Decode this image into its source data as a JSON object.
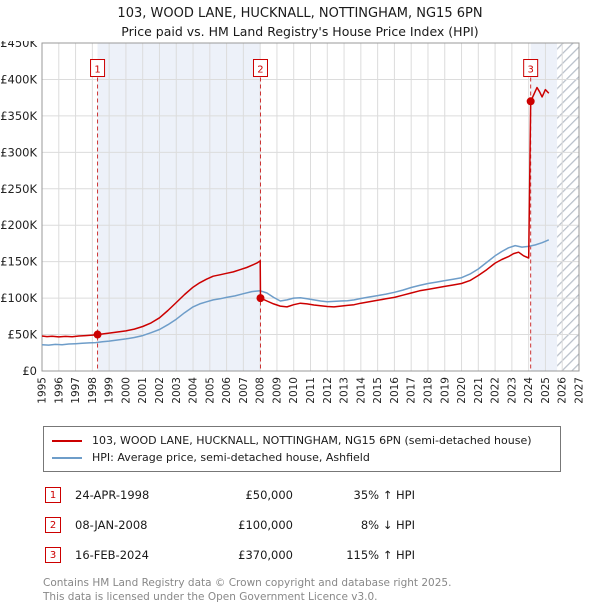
{
  "title": {
    "line1": "103, WOOD LANE, HUCKNALL, NOTTINGHAM, NG15 6PN",
    "line2": "Price paid vs. HM Land Registry's House Price Index (HPI)"
  },
  "chart_data": {
    "type": "line",
    "x_range": [
      1995,
      2027
    ],
    "y_range": [
      0,
      450000
    ],
    "grid": true,
    "x_ticks": [
      1995,
      1996,
      1997,
      1998,
      1999,
      2000,
      2001,
      2002,
      2003,
      2004,
      2005,
      2006,
      2007,
      2008,
      2009,
      2010,
      2011,
      2012,
      2013,
      2014,
      2015,
      2016,
      2017,
      2018,
      2019,
      2020,
      2021,
      2022,
      2023,
      2024,
      2025,
      2026,
      2027
    ],
    "y_ticks": [
      {
        "value": 0,
        "label": "£0"
      },
      {
        "value": 50000,
        "label": "£50K"
      },
      {
        "value": 100000,
        "label": "£100K"
      },
      {
        "value": 150000,
        "label": "£150K"
      },
      {
        "value": 200000,
        "label": "£200K"
      },
      {
        "value": 250000,
        "label": "£250K"
      },
      {
        "value": 300000,
        "label": "£300K"
      },
      {
        "value": 350000,
        "label": "£350K"
      },
      {
        "value": 400000,
        "label": "£400K"
      },
      {
        "value": 450000,
        "label": "£450K"
      }
    ],
    "colors": {
      "band": "#edf1f9",
      "grid": "#dcdcdc",
      "axis": "#999999",
      "sale": "#cc0000",
      "sale_dash": "#cc3333",
      "hatch_line": "#b8bfc9"
    },
    "marker_label_y": 415000,
    "bands": [
      [
        1998.31,
        2008.02
      ],
      [
        2024.12,
        2025.7
      ]
    ],
    "hatch": [
      2025.7,
      2027
    ],
    "series": [
      {
        "name": "103, WOOD LANE, HUCKNALL, NOTTINGHAM, NG15 6PN (semi-detached house)",
        "color": "#cc0000",
        "width": 1.5,
        "points": [
          [
            1995.0,
            48000
          ],
          [
            1995.3,
            47200
          ],
          [
            1995.6,
            47800
          ],
          [
            1996.0,
            46800
          ],
          [
            1996.4,
            47500
          ],
          [
            1996.8,
            47000
          ],
          [
            1997.2,
            48000
          ],
          [
            1997.6,
            48500
          ],
          [
            1998.0,
            49200
          ],
          [
            1998.31,
            50000
          ],
          [
            1998.7,
            51000
          ],
          [
            1999.0,
            52000
          ],
          [
            1999.5,
            53500
          ],
          [
            2000.0,
            55000
          ],
          [
            2000.5,
            57500
          ],
          [
            2001.0,
            61000
          ],
          [
            2001.5,
            66000
          ],
          [
            2002.0,
            73000
          ],
          [
            2002.5,
            83000
          ],
          [
            2003.0,
            94000
          ],
          [
            2003.5,
            105000
          ],
          [
            2004.0,
            115000
          ],
          [
            2004.4,
            121000
          ],
          [
            2004.8,
            126000
          ],
          [
            2005.2,
            130000
          ],
          [
            2005.6,
            132000
          ],
          [
            2006.0,
            134000
          ],
          [
            2006.4,
            136000
          ],
          [
            2006.8,
            139000
          ],
          [
            2007.2,
            142000
          ],
          [
            2007.5,
            145000
          ],
          [
            2007.8,
            148000
          ],
          [
            2008.0,
            151000
          ],
          [
            2008.02,
            100000
          ],
          [
            2008.4,
            96000
          ],
          [
            2008.8,
            92000
          ],
          [
            2009.2,
            89000
          ],
          [
            2009.6,
            88000
          ],
          [
            2010.0,
            91000
          ],
          [
            2010.4,
            93000
          ],
          [
            2010.8,
            92000
          ],
          [
            2011.2,
            90500
          ],
          [
            2011.6,
            89500
          ],
          [
            2012.0,
            88500
          ],
          [
            2012.4,
            88000
          ],
          [
            2012.8,
            89000
          ],
          [
            2013.2,
            90000
          ],
          [
            2013.6,
            91000
          ],
          [
            2014.0,
            93000
          ],
          [
            2014.5,
            95000
          ],
          [
            2015.0,
            97000
          ],
          [
            2015.5,
            99000
          ],
          [
            2016.0,
            101000
          ],
          [
            2016.5,
            104000
          ],
          [
            2017.0,
            107000
          ],
          [
            2017.5,
            110000
          ],
          [
            2018.0,
            112000
          ],
          [
            2018.5,
            114000
          ],
          [
            2019.0,
            116000
          ],
          [
            2019.5,
            118000
          ],
          [
            2020.0,
            120000
          ],
          [
            2020.5,
            124000
          ],
          [
            2021.0,
            131000
          ],
          [
            2021.5,
            139000
          ],
          [
            2022.0,
            148000
          ],
          [
            2022.4,
            153000
          ],
          [
            2022.8,
            157000
          ],
          [
            2023.1,
            161000
          ],
          [
            2023.4,
            163000
          ],
          [
            2023.7,
            158000
          ],
          [
            2024.0,
            155000
          ],
          [
            2024.12,
            370000
          ],
          [
            2024.3,
            379000
          ],
          [
            2024.5,
            389000
          ],
          [
            2024.65,
            383000
          ],
          [
            2024.8,
            376000
          ],
          [
            2025.0,
            386000
          ],
          [
            2025.2,
            381000
          ]
        ]
      },
      {
        "name": "HPI: Average price, semi-detached house, Ashfield",
        "color": "#6e9dc9",
        "width": 1.5,
        "points": [
          [
            1995.0,
            36000
          ],
          [
            1995.4,
            35500
          ],
          [
            1995.8,
            36500
          ],
          [
            1996.2,
            36000
          ],
          [
            1996.6,
            37000
          ],
          [
            1997.0,
            37500
          ],
          [
            1997.4,
            38000
          ],
          [
            1997.8,
            38500
          ],
          [
            1998.2,
            39000
          ],
          [
            1998.6,
            40000
          ],
          [
            1999.0,
            41000
          ],
          [
            1999.5,
            42500
          ],
          [
            2000.0,
            44000
          ],
          [
            2000.5,
            46000
          ],
          [
            2001.0,
            48500
          ],
          [
            2001.5,
            52500
          ],
          [
            2002.0,
            57000
          ],
          [
            2002.5,
            63500
          ],
          [
            2003.0,
            71000
          ],
          [
            2003.5,
            80000
          ],
          [
            2004.0,
            88000
          ],
          [
            2004.4,
            92000
          ],
          [
            2004.8,
            95000
          ],
          [
            2005.2,
            97500
          ],
          [
            2005.6,
            99000
          ],
          [
            2006.0,
            101000
          ],
          [
            2006.5,
            103000
          ],
          [
            2007.0,
            106000
          ],
          [
            2007.5,
            109000
          ],
          [
            2008.0,
            110000
          ],
          [
            2008.4,
            107000
          ],
          [
            2008.8,
            101000
          ],
          [
            2009.2,
            96000
          ],
          [
            2009.6,
            97500
          ],
          [
            2010.0,
            100000
          ],
          [
            2010.4,
            100500
          ],
          [
            2010.8,
            99000
          ],
          [
            2011.2,
            97500
          ],
          [
            2011.6,
            96000
          ],
          [
            2012.0,
            95000
          ],
          [
            2012.4,
            95500
          ],
          [
            2012.8,
            96000
          ],
          [
            2013.2,
            96500
          ],
          [
            2013.6,
            97500
          ],
          [
            2014.0,
            99500
          ],
          [
            2014.5,
            101500
          ],
          [
            2015.0,
            103500
          ],
          [
            2015.5,
            105500
          ],
          [
            2016.0,
            108000
          ],
          [
            2016.5,
            111000
          ],
          [
            2017.0,
            114500
          ],
          [
            2017.5,
            117500
          ],
          [
            2018.0,
            120000
          ],
          [
            2018.5,
            122000
          ],
          [
            2019.0,
            124000
          ],
          [
            2019.5,
            126000
          ],
          [
            2020.0,
            128000
          ],
          [
            2020.5,
            133000
          ],
          [
            2021.0,
            140000
          ],
          [
            2021.5,
            149000
          ],
          [
            2022.0,
            158000
          ],
          [
            2022.4,
            164000
          ],
          [
            2022.8,
            169000
          ],
          [
            2023.2,
            172000
          ],
          [
            2023.6,
            170000
          ],
          [
            2024.0,
            171000
          ],
          [
            2024.4,
            173000
          ],
          [
            2024.8,
            176000
          ],
          [
            2025.0,
            178000
          ],
          [
            2025.2,
            180000
          ]
        ]
      }
    ],
    "sales": [
      {
        "n": "1",
        "x": 1998.31,
        "y": 50000
      },
      {
        "n": "2",
        "x": 2008.02,
        "y": 100000
      },
      {
        "n": "3",
        "x": 2024.12,
        "y": 370000
      }
    ]
  },
  "legend": {
    "entries": [
      {
        "label": "103, WOOD LANE, HUCKNALL, NOTTINGHAM, NG15 6PN (semi-detached house)",
        "color": "#cc0000"
      },
      {
        "label": "HPI: Average price, semi-detached house, Ashfield",
        "color": "#6e9dc9"
      }
    ]
  },
  "transactions": [
    {
      "num": "1",
      "date": "24-APR-1998",
      "price": "£50,000",
      "hpi": "35% ↑ HPI"
    },
    {
      "num": "2",
      "date": "08-JAN-2008",
      "price": "£100,000",
      "hpi": "8% ↓ HPI"
    },
    {
      "num": "3",
      "date": "16-FEB-2024",
      "price": "£370,000",
      "hpi": "115% ↑ HPI"
    }
  ],
  "footer": {
    "line1": "Contains HM Land Registry data © Crown copyright and database right 2025.",
    "line2": "This data is licensed under the Open Government Licence v3.0."
  }
}
